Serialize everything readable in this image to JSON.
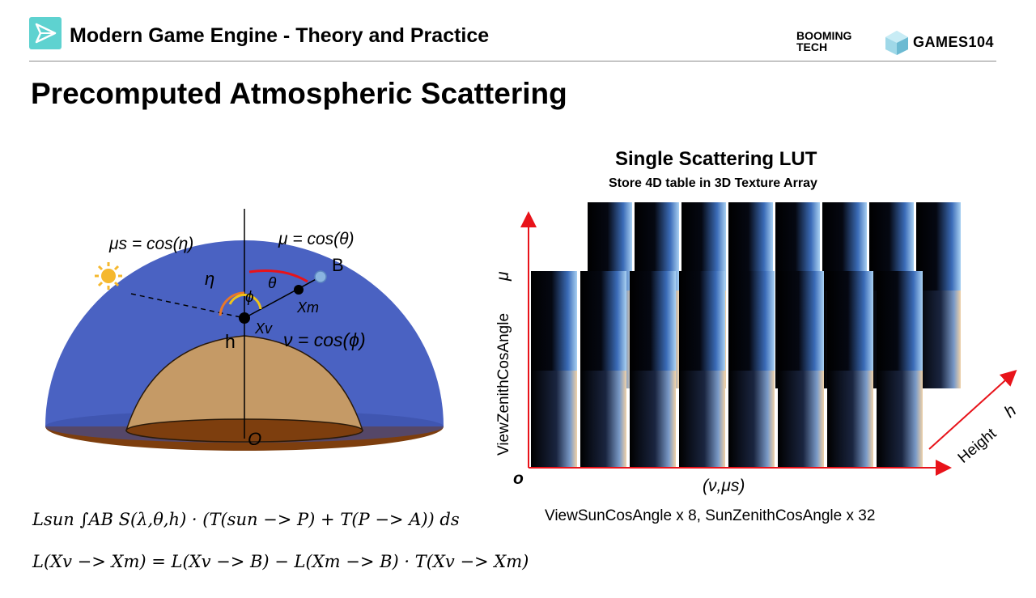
{
  "header": {
    "course_title": "Modern Game Engine - Theory and Practice",
    "brand_booming": "BOOMING TECH",
    "brand_games": "GAMES104"
  },
  "slide": {
    "title": "Precomputed Atmospheric Scattering"
  },
  "diagram_left": {
    "label_mu_s": "μs = cos(η)",
    "label_mu": "μ = cos(θ)",
    "label_nu": "ν = cos(ϕ)",
    "label_eta": "η",
    "label_theta": "θ",
    "label_phi": "ϕ",
    "label_B": "B",
    "label_h": "h",
    "label_xv": "Xv",
    "label_xm": "Xm",
    "label_o": "O",
    "colors": {
      "sky": "#4a62c2",
      "ground_top": "#c59a66",
      "ground_base": "#7d3e0e",
      "sun": "#f5b82e"
    }
  },
  "diagram_right": {
    "title": "Single Scattering LUT",
    "subtitle": "Store 4D table in 3D Texture Array",
    "y_axis_label": "ViewZenithCosAngle",
    "y_axis_symbol": "μ",
    "x_axis_label": "(ν,μs)",
    "z_axis_label": "Height",
    "z_axis_symbol": "h",
    "origin": "o",
    "caption": "ViewSunCosAngle x 8, SunZenithCosAngle x 32",
    "colors": {
      "axis": "#e8131a"
    }
  },
  "formulas": {
    "line1": "Lsun ∫AB S(λ,θ,h) · (T(sun −> P) + T(P −> A)) ds",
    "line2": "L(Xv −> Xm) = L(Xv −> B) − L(Xm −> B) · T(Xv −> Xm)"
  }
}
